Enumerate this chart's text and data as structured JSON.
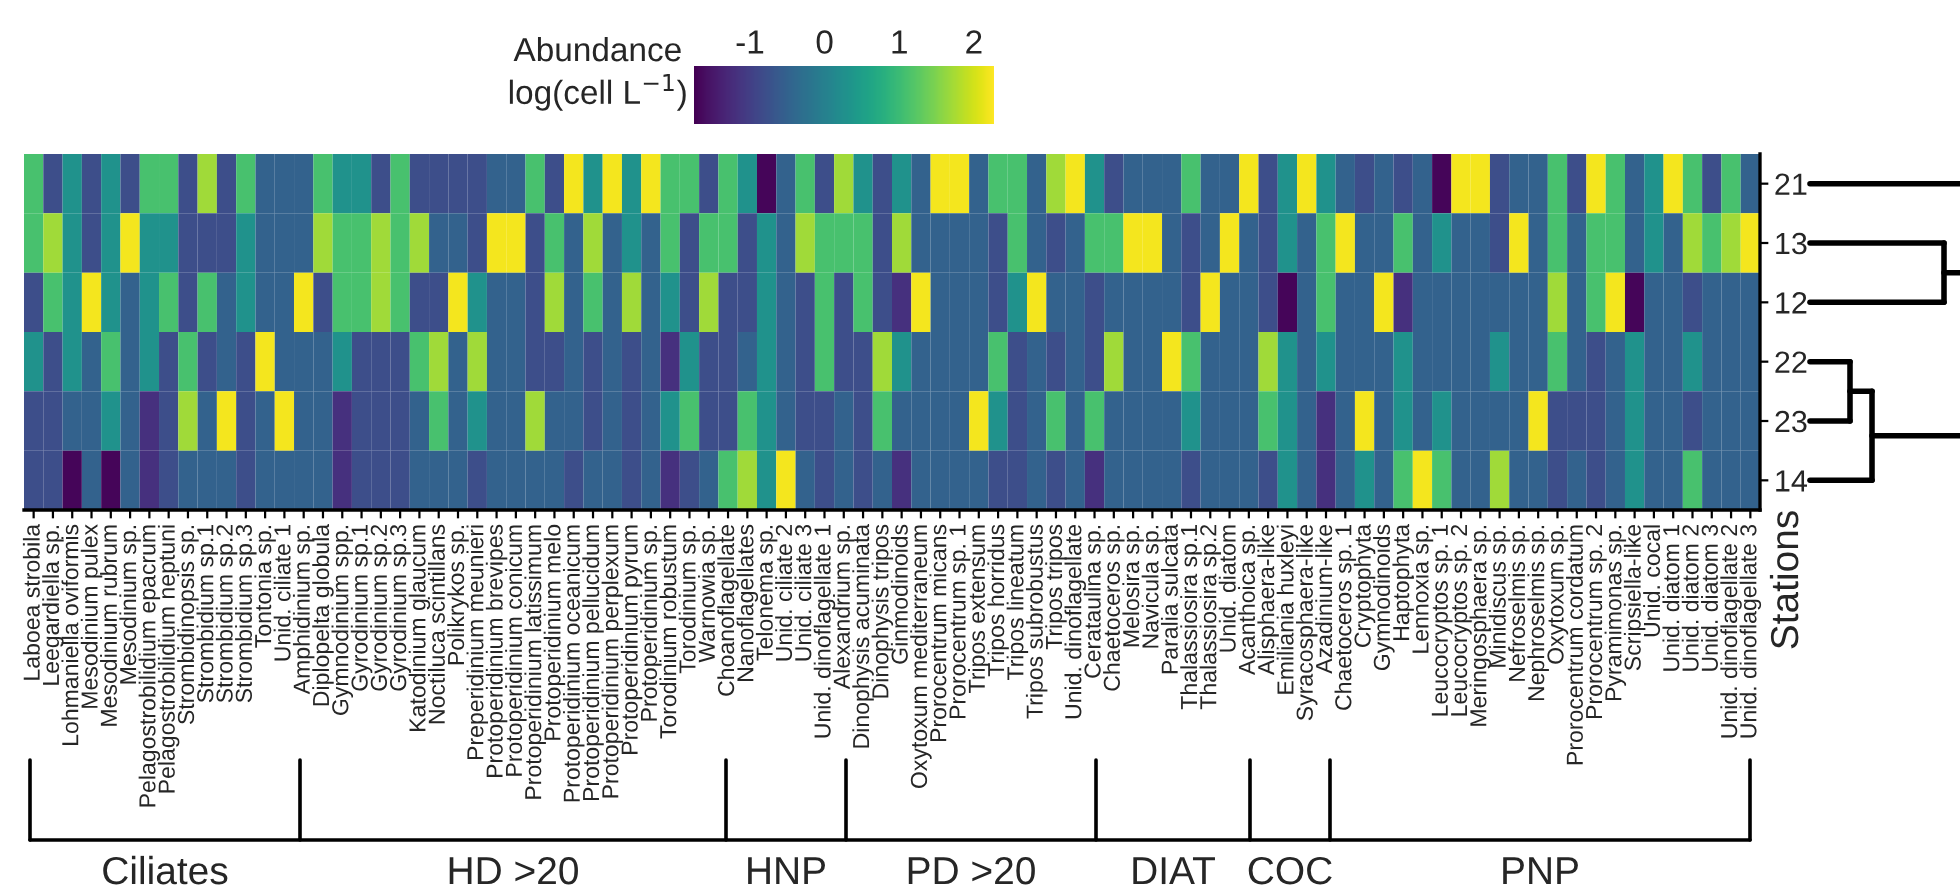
{
  "chart_data": {
    "type": "heatmap",
    "ylabel": "Stations",
    "clabel": "Abundance\nlog(cell L$^{−1}$)",
    "clim": [
      -1.75,
      2.27
    ],
    "cticks": [
      {
        "value": -1,
        "label": "-1"
      },
      0,
      1,
      2
    ],
    "annotations": [
      "Ciliates",
      "HD >20",
      "HNP",
      "PD >20",
      "DIAT",
      "COC",
      "PNP"
    ],
    "categories": [
      "Laboea strobila",
      "Leegardiella sp.",
      "Lohmaniella oviformis",
      "Mesodinium pulex",
      "Mesodinium rubrum",
      "Mesodinium sp.",
      "Pelagostrobilidium epacrum",
      "Pelagostrobilidium neptuni",
      "Strombidinopsis sp.",
      "Strombidium sp.1",
      "Strombidium sp.2",
      "Strombidium sp.3",
      "Tontonia sp.",
      "Unid. ciliate 1",
      "Amphidinium sp.",
      "Diplopelta globula",
      "Gymnodinium spp.",
      "Gyrodinium sp.1",
      "Gyrodinium sp.2",
      "Gyrodinium sp.3",
      "Katodinium glaucum",
      "Noctiluca scintillans",
      "Polikrykos sp.",
      "Preperidinium meunieri",
      "Protoperidinium brevipes",
      "Protoperidinium conicum",
      "Protoperidinium latissimum",
      "Protoperidinium melo",
      "Protoperidinium oceanicum",
      "Protoperidinium pellucidum",
      "Protoperidinium perplexum",
      "Protoperidinium pyrum",
      "Protoperidinium sp.",
      "Torodinium robustum",
      "Torodinium sp.",
      "Warnowia sp.",
      "Choanoflagellate",
      "Nanoflagellates",
      "Telonema sp.",
      "Unid. ciliate 2",
      "Unid. ciliate 3",
      "Unid. dinoflagellate 1",
      "Alexandrium sp.",
      "Dinophysis acuminata",
      "Dinophysis tripos",
      "Ginmodinoids",
      "Oxytoxum mediterraneum",
      "Prorocentrum micans",
      "Prorocentrum sp. 1",
      "Tripos extensum",
      "Tripos horridus",
      "Tripos lineatum",
      "Tripos subrobustus",
      "Tripos tripos",
      "Unid. dinoflagellate",
      "Cerataulina sp.",
      "Chaetoceros sp.",
      "Melosira sp.",
      "Navicula sp.",
      "Paralia sulcata",
      "Thalassiosira sp.1",
      "Thalassiosira sp.2",
      "Unid. diatom",
      "Acanthoica sp.",
      "Alisphaera-like",
      "Emiliania huxleyi",
      "Syracosphaera-like",
      "Azadinium-like",
      "Chaetoceros sp. 1",
      "Cryptophyta",
      "Gymnodinoids",
      "Haptophyta",
      "Lennoxia sp.",
      "Leucocryptos sp. 1",
      "Leucocryptos sp. 2",
      "Meringosphaera sp.",
      "Minidiscus sp.",
      "Nefroselmis sp.",
      "Nephroselmis sp.",
      "Oxytoxum sp.",
      "Prorocentrum cordatum",
      "Prorocentrum sp. 2",
      "Pyramimonas sp.",
      "Scripsiella-like",
      "Unid. cocal",
      "Unid. diatom 1",
      "Unid. diatom 2",
      "Unid. diatom 3",
      "Unid. dinoflagellate 2",
      "Unid. dinoflagellate 3"
    ],
    "y_categories": [
      "21",
      "13",
      "12",
      "22",
      "23",
      "14"
    ],
    "cells": [
      [
        1.1,
        -0.8,
        0.3,
        -0.8,
        0.3,
        -0.8,
        1.1,
        1.1,
        -0.8,
        1.7,
        -0.8,
        1.1,
        -0.5,
        -0.5,
        -0.5,
        1.1,
        0.3,
        0.3,
        -0.8,
        1.1,
        -0.8,
        -0.8,
        -0.8,
        -0.8,
        -0.5,
        -0.5,
        1.1,
        -0.8,
        2.2,
        0.3,
        2.2,
        0.3,
        2.2,
        1.1,
        1.1,
        -0.8,
        1.1,
        0.3,
        -1.7,
        -0.5,
        1.1,
        -0.8,
        1.7,
        0.3,
        -0.8,
        0.3,
        -0.5,
        2.2,
        2.2,
        -0.5,
        1.1,
        1.1,
        -0.5,
        1.7,
        2.2,
        0.3,
        -0.8,
        -0.5,
        -0.5,
        -0.5,
        1.1,
        -0.5,
        -0.5,
        2.2,
        -0.8,
        0.3,
        2.2,
        0.3,
        -0.5,
        -0.8,
        -0.5,
        -0.8,
        -0.5,
        -1.7,
        2.2,
        2.2,
        -0.8,
        -0.5,
        -0.5,
        1.1,
        -0.8,
        2.2,
        1.1,
        -0.5,
        0.3,
        2.2,
        1.1,
        -0.8,
        1.1,
        -0.5
      ],
      [
        1.1,
        1.7,
        0.3,
        -0.8,
        0.3,
        2.2,
        0.3,
        0.3,
        -0.8,
        -0.8,
        -0.8,
        0.3,
        -0.5,
        -0.5,
        -0.5,
        1.7,
        1.1,
        1.1,
        1.7,
        1.1,
        1.7,
        -0.5,
        -0.5,
        -0.8,
        2.2,
        2.2,
        -0.8,
        1.1,
        -0.5,
        1.7,
        -0.5,
        0.3,
        -0.5,
        1.1,
        -0.8,
        1.1,
        1.1,
        -0.8,
        0.3,
        -0.5,
        1.7,
        1.1,
        1.1,
        1.1,
        -0.8,
        1.7,
        -0.5,
        -0.5,
        -0.5,
        -0.5,
        -0.8,
        1.1,
        -0.5,
        -0.8,
        -0.5,
        1.1,
        1.1,
        2.2,
        2.2,
        -0.5,
        -0.8,
        -0.5,
        2.2,
        -0.5,
        -0.8,
        0.3,
        -0.5,
        1.1,
        2.2,
        -0.5,
        -0.5,
        1.1,
        -0.5,
        0.3,
        -0.5,
        -0.5,
        -0.8,
        2.2,
        -0.5,
        1.1,
        -0.5,
        1.1,
        1.1,
        -0.5,
        0.3,
        -0.5,
        1.7,
        1.1,
        1.7,
        2.2
      ],
      [
        -0.8,
        1.1,
        0.3,
        2.2,
        0.3,
        -0.5,
        0.3,
        1.1,
        -0.8,
        1.1,
        -0.5,
        0.3,
        -0.5,
        -0.5,
        2.2,
        -0.8,
        1.1,
        1.1,
        1.7,
        1.1,
        -0.8,
        -0.8,
        2.2,
        0.3,
        -0.5,
        -0.5,
        -0.8,
        1.7,
        -0.5,
        1.1,
        -0.5,
        1.7,
        -0.5,
        0.3,
        -0.8,
        1.7,
        -0.8,
        -0.8,
        0.3,
        -0.5,
        -0.8,
        1.1,
        -0.8,
        1.1,
        -0.8,
        -1.2,
        2.2,
        -0.5,
        -0.5,
        -0.5,
        -0.8,
        0.3,
        2.2,
        -0.5,
        -0.5,
        -0.8,
        -0.5,
        -0.5,
        -0.5,
        -0.5,
        -0.8,
        2.2,
        -0.5,
        -0.5,
        -0.8,
        -1.7,
        -0.5,
        1.1,
        -0.5,
        -0.5,
        2.2,
        -1.2,
        -0.5,
        -0.5,
        -0.5,
        -0.5,
        -0.5,
        -0.5,
        -0.5,
        1.7,
        -0.5,
        1.1,
        2.2,
        -1.7,
        -0.5,
        -0.5,
        -0.8,
        -0.5,
        -0.5,
        -0.5
      ],
      [
        0.3,
        -0.8,
        0.3,
        -0.5,
        1.1,
        -0.5,
        0.3,
        -0.8,
        1.1,
        -0.8,
        -0.5,
        -0.8,
        2.2,
        -0.5,
        -0.5,
        -0.5,
        0.3,
        -0.8,
        -0.8,
        -0.8,
        1.1,
        1.7,
        -0.5,
        1.7,
        -0.5,
        -0.5,
        -0.8,
        -0.8,
        -0.5,
        -0.8,
        -0.5,
        -0.8,
        -0.5,
        -1.2,
        0.3,
        -0.8,
        -0.8,
        -0.5,
        0.3,
        -0.5,
        -0.8,
        1.1,
        -0.8,
        -0.8,
        1.7,
        0.3,
        -0.5,
        -0.5,
        -0.5,
        -0.5,
        1.1,
        -0.8,
        -0.5,
        -0.8,
        -0.5,
        -0.8,
        1.7,
        -0.5,
        -0.5,
        2.2,
        1.1,
        -0.5,
        -0.5,
        -0.5,
        1.7,
        0.3,
        -0.5,
        0.3,
        -0.5,
        -0.5,
        -0.5,
        0.3,
        -0.5,
        -0.5,
        -0.5,
        -0.5,
        0.3,
        -0.5,
        -0.5,
        1.1,
        -0.5,
        -0.8,
        -0.5,
        0.3,
        -0.5,
        -0.5,
        0.3,
        -0.5,
        -0.5,
        -0.5
      ],
      [
        -0.8,
        -0.8,
        -0.5,
        -0.5,
        0.3,
        -0.5,
        -1.2,
        -0.8,
        1.7,
        -0.5,
        2.2,
        -0.8,
        -0.5,
        2.2,
        -0.5,
        -0.5,
        -1.2,
        -0.8,
        -0.8,
        -0.8,
        -0.5,
        1.1,
        -0.5,
        0.3,
        -0.5,
        -0.5,
        1.7,
        -0.5,
        -0.5,
        -0.8,
        -0.5,
        -0.8,
        -0.5,
        0.3,
        1.1,
        -0.8,
        -0.8,
        1.1,
        0.3,
        -0.5,
        -0.8,
        -0.8,
        -0.5,
        -0.8,
        1.1,
        -0.5,
        -0.5,
        -0.5,
        -0.5,
        2.2,
        0.3,
        -0.8,
        -0.5,
        1.1,
        -0.5,
        1.1,
        -0.5,
        -0.5,
        -0.5,
        -0.5,
        0.3,
        -0.5,
        -0.5,
        -0.5,
        1.1,
        0.3,
        -0.5,
        -1.2,
        -0.5,
        2.2,
        -0.5,
        0.3,
        -0.5,
        0.3,
        -0.5,
        -0.5,
        -0.5,
        -0.5,
        2.2,
        -0.8,
        -0.8,
        -0.8,
        -0.5,
        0.3,
        -0.5,
        -0.5,
        -0.8,
        -0.5,
        -0.5,
        -0.5
      ],
      [
        -0.8,
        -0.8,
        -1.7,
        -0.5,
        -1.7,
        -0.5,
        -1.2,
        -0.8,
        -0.5,
        -0.5,
        -0.5,
        -0.8,
        -0.5,
        -0.5,
        -0.5,
        -0.5,
        -1.2,
        -0.8,
        -0.8,
        -0.8,
        -0.5,
        -0.5,
        -0.5,
        -0.8,
        -0.5,
        -0.5,
        -0.5,
        -0.5,
        -0.8,
        -0.5,
        -0.5,
        -0.8,
        -0.5,
        -1.2,
        -0.8,
        -0.5,
        1.1,
        1.7,
        0.3,
        2.2,
        -0.5,
        -0.8,
        -0.5,
        -0.8,
        -0.5,
        -1.2,
        -0.5,
        -0.5,
        -0.5,
        -0.5,
        -0.8,
        -0.8,
        -0.5,
        -0.8,
        -0.5,
        -1.2,
        -0.5,
        -0.5,
        -0.5,
        -0.5,
        -0.8,
        -0.5,
        -0.5,
        -0.5,
        -0.8,
        0.3,
        -0.5,
        -1.2,
        -0.5,
        0.3,
        -0.5,
        1.1,
        2.2,
        1.1,
        -0.5,
        -0.5,
        1.7,
        -0.5,
        -0.5,
        -0.8,
        -0.5,
        -0.8,
        -0.5,
        0.3,
        -0.5,
        -0.5,
        1.1,
        -0.5,
        -0.5,
        -0.5
      ]
    ]
  }
}
